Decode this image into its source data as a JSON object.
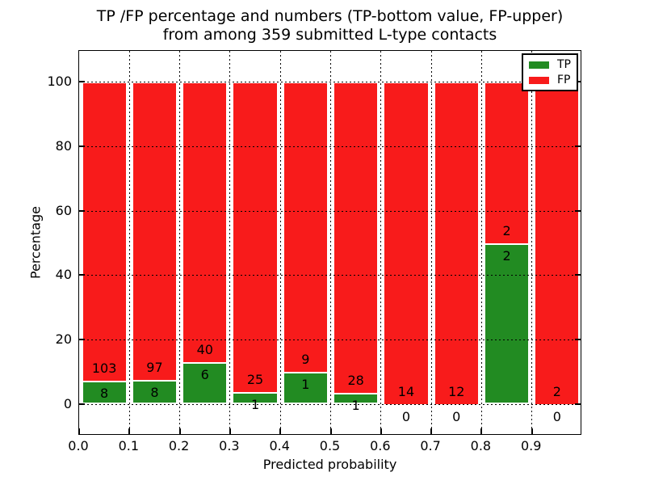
{
  "figure": {
    "title_line1": "TP /FP percentage and numbers (TP-bottom value, FP-upper)",
    "title_line2": "from among 359 submitted L-type contacts"
  },
  "chart_data": {
    "type": "bar",
    "subtype": "stacked-percentage",
    "title": "TP /FP percentage and numbers (TP-bottom value, FP-upper) from among 359 submitted L-type contacts",
    "xlabel": "Predicted probability",
    "ylabel": "Percentage",
    "total_contacts": 359,
    "bin_left_edges": [
      0.0,
      0.1,
      0.2,
      0.3,
      0.4,
      0.5,
      0.6,
      0.7,
      0.8,
      0.9
    ],
    "bin_width": 0.1,
    "series": [
      {
        "name": "TP",
        "color": "#228b22",
        "values": [
          8,
          8,
          6,
          1,
          1,
          1,
          0,
          0,
          2,
          0
        ]
      },
      {
        "name": "FP",
        "color": "#f81b1b",
        "values": [
          103,
          97,
          40,
          25,
          9,
          28,
          14,
          12,
          2,
          2
        ]
      }
    ],
    "tp_percent_heights": [
      7.2,
      7.6,
      13.0,
      3.8,
      10.0,
      3.4,
      0.0,
      0.0,
      50.0,
      0.0
    ],
    "xlim": [
      0.0,
      1.0
    ],
    "ylim": [
      -10,
      110
    ],
    "xticks": [
      "0.0",
      "0.1",
      "0.2",
      "0.3",
      "0.4",
      "0.5",
      "0.6",
      "0.7",
      "0.8",
      "0.9"
    ],
    "yticks": [
      0,
      20,
      40,
      60,
      80,
      100
    ],
    "grid": {
      "on": true,
      "style": "dotted",
      "color": "#000000"
    },
    "legend": {
      "position": "upper-right",
      "entries": [
        "TP",
        "FP"
      ]
    },
    "colors": {
      "tp_green": "#228b22",
      "fp_red": "#f81b1b",
      "bar_edge": "#ffffff",
      "background": "#ffffff",
      "text": "#000000"
    }
  }
}
